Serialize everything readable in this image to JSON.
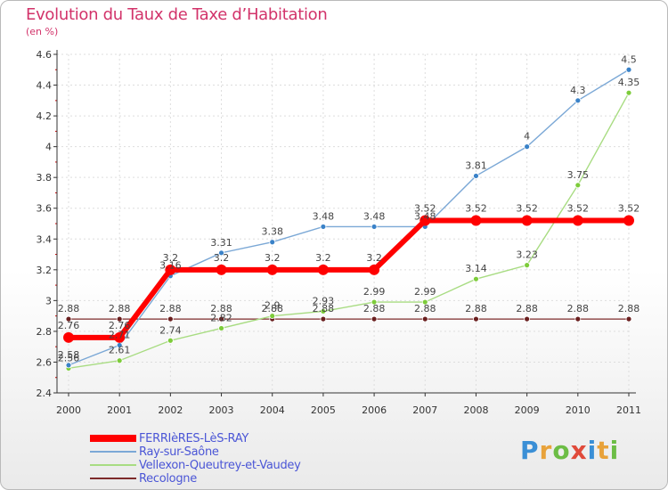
{
  "header": {
    "title": "Evolution du Taux de Taxe d’Habitation",
    "subtitle": "(en %)"
  },
  "logo": {
    "letters": [
      "P",
      "r",
      "o",
      "x",
      "i",
      "t",
      "i"
    ],
    "colors": [
      "#3a8fd6",
      "#e8a23a",
      "#6cbd45",
      "#e04a3a",
      "#3a8fd6",
      "#e8a23a",
      "#6cbd45"
    ]
  },
  "chart_data": {
    "type": "line",
    "title": "Evolution du Taux de Taxe d’Habitation",
    "ylabel": "(en %)",
    "xlabel": "",
    "x": [
      "2000",
      "2001",
      "2002",
      "2003",
      "2004",
      "2005",
      "2006",
      "2007",
      "2008",
      "2009",
      "2010",
      "2011"
    ],
    "ylim": [
      2.4,
      4.6
    ],
    "yticks": [
      "2.4",
      "2.6",
      "2.8",
      "3",
      "3.2",
      "3.4",
      "3.6",
      "3.8",
      "4",
      "4.2",
      "4.4",
      "4.6"
    ],
    "grid": true,
    "legend_position": "bottom-left",
    "series": [
      {
        "name": "FERRIèRES-LèS-RAY",
        "color": "#ff0000",
        "values": [
          2.76,
          2.76,
          3.2,
          3.2,
          3.2,
          3.2,
          3.2,
          3.52,
          3.52,
          3.52,
          3.52,
          3.52
        ],
        "labels": [
          "2.76",
          "2.76",
          "3.2",
          "3.2",
          "3.2",
          "3.2",
          "3.2",
          "3.52",
          "3.52",
          "3.52",
          "3.52",
          "3.52"
        ]
      },
      {
        "name": "Ray-sur-Saône",
        "color": "#7ba8d6",
        "values": [
          2.58,
          2.71,
          3.16,
          3.31,
          3.38,
          3.48,
          3.48,
          3.48,
          3.81,
          4.0,
          4.3,
          4.5
        ],
        "labels": [
          "2.58",
          "2.71",
          "3.16",
          "3.31",
          "3.38",
          "3.48",
          "3.48",
          "3.48",
          "3.81",
          "4",
          "4.3",
          "4.5"
        ]
      },
      {
        "name": "Vellexon-Queutrey-et-Vaudey",
        "color": "#a8dc82",
        "values": [
          2.56,
          2.61,
          2.74,
          2.82,
          2.9,
          2.93,
          2.99,
          2.99,
          3.14,
          3.23,
          3.75,
          4.35
        ],
        "labels": [
          "2.56",
          "2.61",
          "2.74",
          "2.82",
          "2.9",
          "2.93",
          "2.99",
          "2.99",
          "3.14",
          "3.23",
          "3.75",
          "4.35"
        ]
      },
      {
        "name": "Recologne",
        "color": "#7d2a2a",
        "values": [
          2.88,
          2.88,
          2.88,
          2.88,
          2.88,
          2.88,
          2.88,
          2.88,
          2.88,
          2.88,
          2.88,
          2.88
        ],
        "labels": [
          "2.88",
          "2.88",
          "2.88",
          "2.88",
          "2.88",
          "2.88",
          "2.88",
          "2.88",
          "2.88",
          "2.88",
          "2.88",
          "2.88"
        ]
      }
    ]
  }
}
